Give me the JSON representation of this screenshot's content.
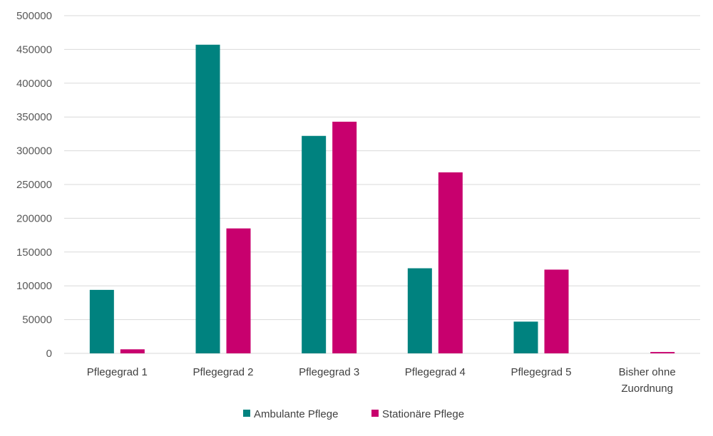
{
  "chart_data": {
    "type": "bar",
    "categories": [
      [
        "Pflegegrad 1"
      ],
      [
        "Pflegegrad 2"
      ],
      [
        "Pflegegrad 3"
      ],
      [
        "Pflegegrad 4"
      ],
      [
        "Pflegegrad 5"
      ],
      [
        "Bisher ohne",
        "Zuordnung"
      ]
    ],
    "series": [
      {
        "name": "Ambulante Pflege",
        "color": "#00827F",
        "values": [
          94000,
          457000,
          322000,
          126000,
          47000,
          0
        ]
      },
      {
        "name": "Stationäre Pflege",
        "color": "#C8006E",
        "values": [
          6000,
          185000,
          343000,
          268000,
          124000,
          2000
        ]
      }
    ],
    "ylim": [
      0,
      500000
    ],
    "yticks": [
      0,
      50000,
      100000,
      150000,
      200000,
      250000,
      300000,
      350000,
      400000,
      450000,
      500000
    ],
    "grid": true,
    "legend": "bottom"
  }
}
